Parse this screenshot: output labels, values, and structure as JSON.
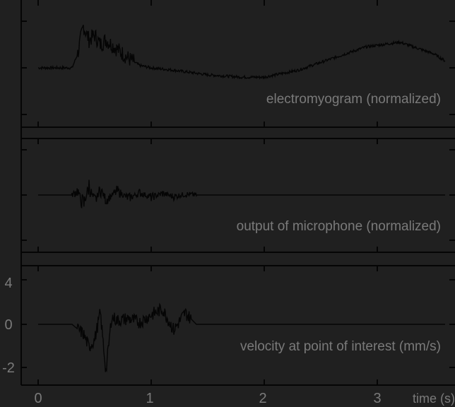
{
  "chart_data": [
    {
      "type": "line",
      "panel": "top",
      "label": "electromyogram (normalized)",
      "xlim": [
        -0.1,
        3.9
      ],
      "series": [
        {
          "x": [
            0,
            0.1,
            0.2,
            0.3,
            0.35,
            0.4,
            0.45,
            0.5,
            0.55,
            0.6,
            0.7,
            0.8,
            0.9,
            1.0,
            1.2,
            1.5,
            1.8,
            2.0,
            2.3,
            2.6,
            2.9,
            3.2,
            3.5,
            3.6
          ],
          "y": [
            0.0,
            0.0,
            0.0,
            0.0,
            0.6,
            1.8,
            1.2,
            1.4,
            1.0,
            1.2,
            0.8,
            0.4,
            0.1,
            0.0,
            -0.1,
            -0.3,
            -0.4,
            -0.4,
            -0.1,
            0.4,
            0.9,
            1.1,
            0.6,
            0.3
          ]
        }
      ]
    },
    {
      "type": "line",
      "panel": "middle",
      "label": "output of microphone (normalized)",
      "xlim": [
        -0.1,
        3.9
      ],
      "series": [
        {
          "x": [
            0,
            0.3,
            0.35,
            0.4,
            0.45,
            0.5,
            0.55,
            0.6,
            0.7,
            0.8,
            0.9,
            1.0,
            1.1,
            1.2,
            1.3,
            1.4,
            3.6
          ],
          "y": [
            0,
            0,
            0.3,
            -0.7,
            0.6,
            -0.5,
            0.4,
            -0.3,
            0.25,
            -0.2,
            0.15,
            -0.15,
            0.1,
            -0.1,
            0.05,
            0,
            0
          ]
        }
      ]
    },
    {
      "type": "line",
      "panel": "bottom",
      "label": "velocity at point of interest (mm/s)",
      "xlim": [
        -0.1,
        3.9
      ],
      "ylim": [
        -2.8,
        4.6
      ],
      "yticks": [
        "4",
        "0",
        "-2"
      ],
      "series": [
        {
          "x": [
            0,
            0.3,
            0.4,
            0.45,
            0.5,
            0.55,
            0.6,
            0.65,
            0.7,
            0.8,
            0.9,
            1.0,
            1.1,
            1.2,
            1.3,
            1.4,
            3.6
          ],
          "y": [
            0,
            0,
            -0.5,
            -1.2,
            -0.8,
            0.6,
            -2.5,
            0.4,
            0.2,
            0.3,
            0.1,
            0.5,
            0.8,
            -0.3,
            0.6,
            0,
            0
          ]
        }
      ]
    }
  ],
  "xaxis": {
    "ticks": [
      "0",
      "1",
      "2",
      "3"
    ],
    "label": "time (s)"
  },
  "colors": {
    "background": "#202020",
    "line": "#050505",
    "text": "#7a7a7a"
  }
}
